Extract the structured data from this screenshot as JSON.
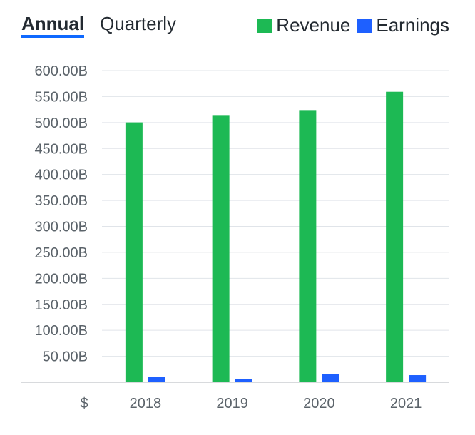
{
  "tabs": [
    {
      "label": "Annual",
      "active": true
    },
    {
      "label": "Quarterly",
      "active": false
    }
  ],
  "legend": [
    {
      "label": "Revenue",
      "color": "#1db954"
    },
    {
      "label": "Earnings",
      "color": "#1e60ff"
    }
  ],
  "currency_label": "$",
  "chart_data": {
    "type": "bar",
    "categories": [
      "2018",
      "2019",
      "2020",
      "2021"
    ],
    "series": [
      {
        "name": "Revenue",
        "color": "#1db954",
        "values": [
          500.3,
          514.4,
          524.0,
          559.2
        ]
      },
      {
        "name": "Earnings",
        "color": "#1e60ff",
        "values": [
          9.9,
          6.7,
          15.2,
          13.7
        ]
      }
    ],
    "ylim": [
      0,
      600
    ],
    "yticks": [
      50,
      100,
      150,
      200,
      250,
      300,
      350,
      400,
      450,
      500,
      550,
      600
    ],
    "ytick_labels": [
      "50.00B",
      "100.00B",
      "150.00B",
      "200.00B",
      "250.00B",
      "300.00B",
      "350.00B",
      "400.00B",
      "450.00B",
      "500.00B",
      "550.00B",
      "600.00B"
    ],
    "grid": true
  }
}
